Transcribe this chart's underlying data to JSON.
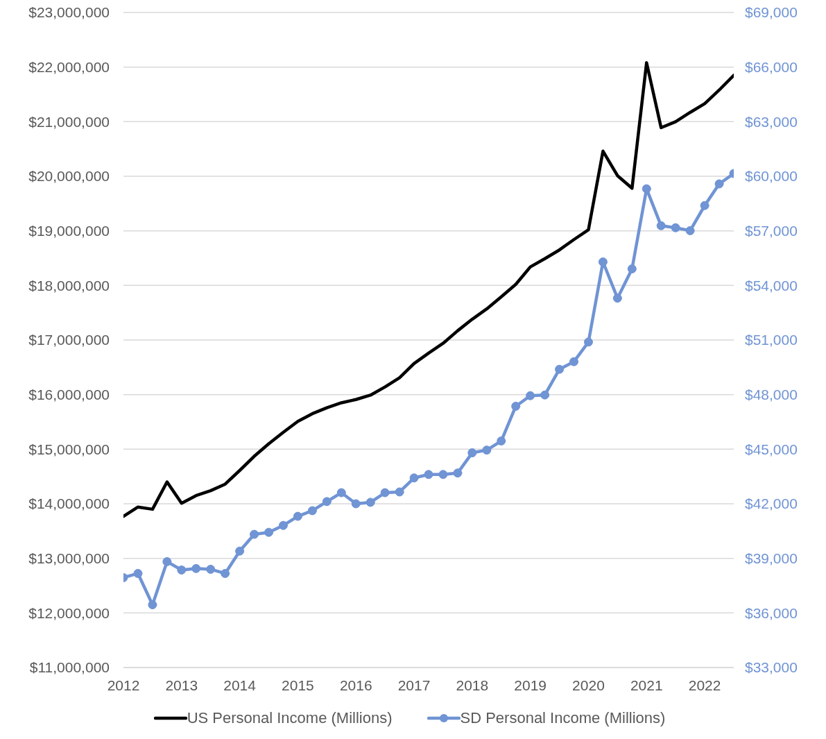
{
  "chart_data": {
    "type": "line",
    "x": [
      2012,
      2012.25,
      2012.5,
      2012.75,
      2013,
      2013.25,
      2013.5,
      2013.75,
      2014,
      2014.25,
      2014.5,
      2014.75,
      2015,
      2015.25,
      2015.5,
      2015.75,
      2016,
      2016.25,
      2016.5,
      2016.75,
      2017,
      2017.25,
      2017.5,
      2017.75,
      2018,
      2018.25,
      2018.5,
      2018.75,
      2019,
      2019.25,
      2019.5,
      2019.75,
      2020,
      2020.25,
      2020.5,
      2020.75,
      2021,
      2021.25,
      2021.5,
      2021.75,
      2022,
      2022.25,
      2022.5
    ],
    "series": [
      {
        "name": "US Personal Income (Millions)",
        "color": "#000000",
        "marker": "none",
        "values": [
          13770000,
          13940000,
          13900000,
          14400000,
          14010000,
          14150000,
          14240000,
          14360000,
          14610000,
          14870000,
          15100000,
          15310000,
          15510000,
          15650000,
          15760000,
          15850000,
          15910000,
          15990000,
          16140000,
          16310000,
          16570000,
          16760000,
          16940000,
          17170000,
          17380000,
          17570000,
          17790000,
          18020000,
          18340000,
          18490000,
          18650000,
          18840000,
          19020000,
          20460000,
          20010000,
          19780000,
          22080000,
          20890000,
          21000000,
          21170000,
          21330000,
          21580000,
          21850000
        ]
      },
      {
        "name": "SD Personal Income (Millions)",
        "color": "#7094d4",
        "marker": "circle",
        "axis": "y2",
        "values": [
          37940,
          38170,
          36450,
          38820,
          38360,
          38440,
          38400,
          38170,
          39400,
          40320,
          40430,
          40810,
          41310,
          41620,
          42120,
          42610,
          42000,
          42080,
          42610,
          42650,
          43420,
          43610,
          43610,
          43690,
          44800,
          44950,
          45450,
          47360,
          47940,
          47980,
          49390,
          49810,
          50890,
          55290,
          53300,
          54910,
          59310,
          57280,
          57170,
          57010,
          58390,
          59580,
          60150
        ]
      }
    ],
    "xlim": [
      2012,
      2022.5
    ],
    "xticks": [
      2012,
      2013,
      2014,
      2015,
      2016,
      2017,
      2018,
      2019,
      2020,
      2021,
      2022
    ],
    "ylim": [
      11000000,
      23000000
    ],
    "yticks": [
      {
        "value": 11000000,
        "label": "$11,000,000"
      },
      {
        "value": 12000000,
        "label": "$12,000,000"
      },
      {
        "value": 13000000,
        "label": "$13,000,000"
      },
      {
        "value": 14000000,
        "label": "$14,000,000"
      },
      {
        "value": 15000000,
        "label": "$15,000,000"
      },
      {
        "value": 16000000,
        "label": "$16,000,000"
      },
      {
        "value": 17000000,
        "label": "$17,000,000"
      },
      {
        "value": 18000000,
        "label": "$18,000,000"
      },
      {
        "value": 19000000,
        "label": "$19,000,000"
      },
      {
        "value": 20000000,
        "label": "$20,000,000"
      },
      {
        "value": 21000000,
        "label": "$21,000,000"
      },
      {
        "value": 22000000,
        "label": "$22,000,000"
      },
      {
        "value": 23000000,
        "label": "$23,000,000"
      }
    ],
    "y2lim": [
      33000,
      69000
    ],
    "y2ticks": [
      {
        "value": 33000,
        "label": "$33,000"
      },
      {
        "value": 36000,
        "label": "$36,000"
      },
      {
        "value": 39000,
        "label": "$39,000"
      },
      {
        "value": 42000,
        "label": "$42,000"
      },
      {
        "value": 45000,
        "label": "$45,000"
      },
      {
        "value": 48000,
        "label": "$48,000"
      },
      {
        "value": 51000,
        "label": "$51,000"
      },
      {
        "value": 54000,
        "label": "$54,000"
      },
      {
        "value": 57000,
        "label": "$57,000"
      },
      {
        "value": 60000,
        "label": "$60,000"
      },
      {
        "value": 63000,
        "label": "$63,000"
      },
      {
        "value": 66000,
        "label": "$66,000"
      },
      {
        "value": 69000,
        "label": "$69,000"
      }
    ],
    "grid": "y",
    "legend": "bottom"
  }
}
